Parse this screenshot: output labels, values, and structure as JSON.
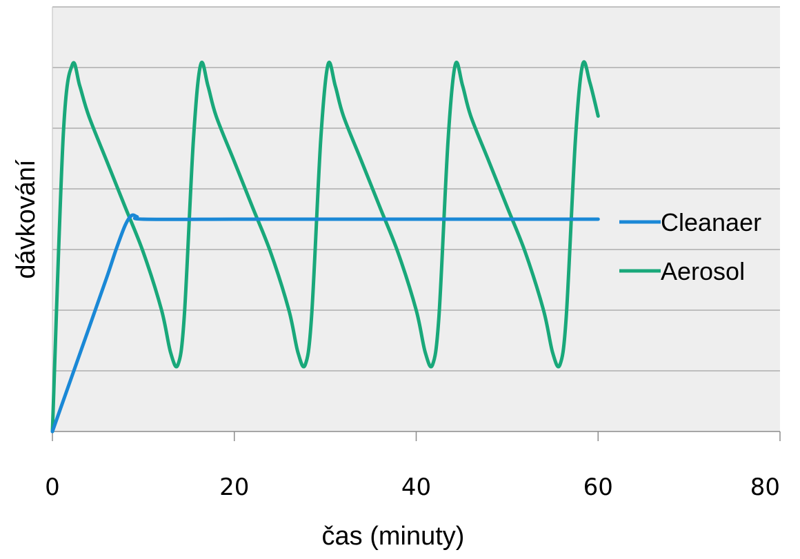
{
  "chart_data": {
    "type": "line",
    "xlabel": "čas (minuty)",
    "ylabel": "dávkování",
    "xlim": [
      0,
      80
    ],
    "ylim": [
      0,
      7
    ],
    "x_ticks": [
      "0",
      "20",
      "40",
      "60",
      "80"
    ],
    "grid": "horizontal",
    "legend_position": "right",
    "colors": {
      "plot_background": "#eeeeee",
      "grid": "#a0a0a0"
    },
    "series": [
      {
        "name": "Cleanaer",
        "color": "#1a88d6",
        "x": [
          0,
          2,
          4,
          6,
          7,
          8,
          8.7,
          9.3,
          10,
          20,
          30,
          40,
          50,
          60
        ],
        "y": [
          0,
          0.85,
          1.7,
          2.55,
          3.0,
          3.4,
          3.56,
          3.54,
          3.5,
          3.5,
          3.5,
          3.5,
          3.5,
          3.5
        ]
      },
      {
        "name": "Aerosol",
        "color": "#19a87a",
        "x": [
          0,
          1.2,
          2.2,
          3,
          4,
          6,
          8,
          10,
          12,
          13,
          13.8,
          14.5,
          15.5,
          16.3,
          17.1,
          18,
          20,
          22,
          24,
          26,
          27,
          27.8,
          28.5,
          29.5,
          30.3,
          31.1,
          32,
          34,
          36,
          38,
          40,
          41,
          41.8,
          42.5,
          43.5,
          44.3,
          45.1,
          46,
          48,
          50,
          52,
          54,
          55,
          55.8,
          56.5,
          57.5,
          58.3,
          59.1,
          60
        ],
        "y": [
          0,
          4.9,
          6.05,
          5.7,
          5.2,
          4.45,
          3.7,
          2.95,
          2.0,
          1.3,
          1.1,
          1.9,
          4.8,
          6.05,
          5.7,
          5.2,
          4.45,
          3.7,
          2.95,
          2.0,
          1.3,
          1.1,
          1.9,
          4.8,
          6.05,
          5.7,
          5.2,
          4.45,
          3.7,
          2.95,
          2.0,
          1.3,
          1.1,
          1.9,
          4.8,
          6.05,
          5.7,
          5.2,
          4.45,
          3.7,
          2.95,
          2.0,
          1.3,
          1.1,
          1.9,
          4.8,
          6.05,
          5.75,
          5.2
        ]
      }
    ]
  }
}
